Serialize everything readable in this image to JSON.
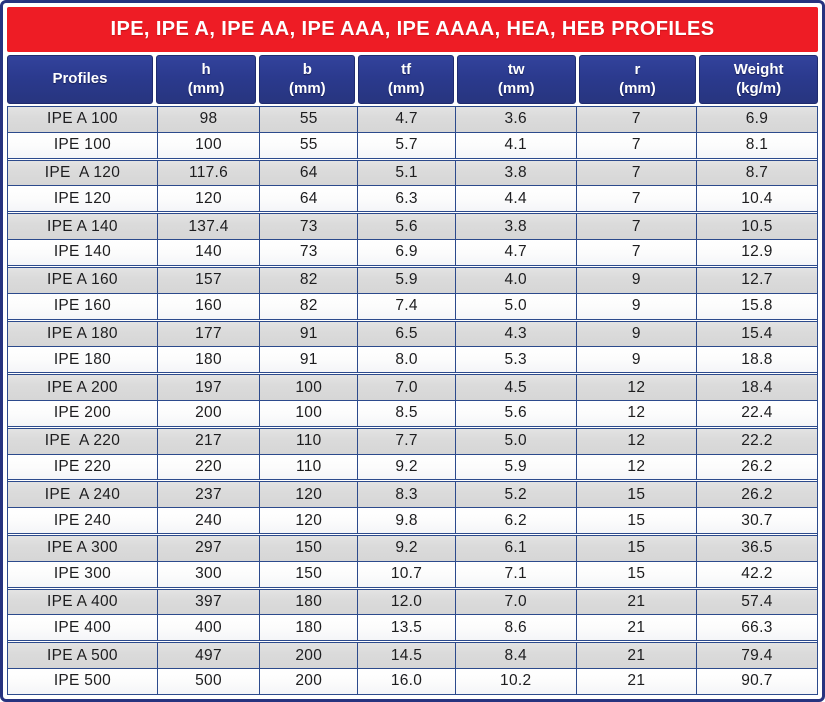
{
  "title": "IPE, IPE A, IPE AA, IPE AAA, IPE AAAA, HEA, HEB PROFILES",
  "columns": [
    {
      "name": "profiles",
      "label": "Profiles",
      "sub": ""
    },
    {
      "name": "h",
      "label": "h",
      "sub": "(mm)"
    },
    {
      "name": "b",
      "label": "b",
      "sub": "(mm)"
    },
    {
      "name": "tf",
      "label": "tf",
      "sub": "(mm)"
    },
    {
      "name": "tw",
      "label": "tw",
      "sub": "(mm)"
    },
    {
      "name": "r",
      "label": "r",
      "sub": "(mm)"
    },
    {
      "name": "weight",
      "label": "Weight",
      "sub": "(kg/m)"
    }
  ],
  "rows": [
    [
      "IPE A 100",
      "98",
      "55",
      "4.7",
      "3.6",
      "7",
      "6.9"
    ],
    [
      "IPE 100",
      "100",
      "55",
      "5.7",
      "4.1",
      "7",
      "8.1"
    ],
    [
      "IPE  A 120",
      "117.6",
      "64",
      "5.1",
      "3.8",
      "7",
      "8.7"
    ],
    [
      "IPE 120",
      "120",
      "64",
      "6.3",
      "4.4",
      "7",
      "10.4"
    ],
    [
      "IPE A 140",
      "137.4",
      "73",
      "5.6",
      "3.8",
      "7",
      "10.5"
    ],
    [
      "IPE 140",
      "140",
      "73",
      "6.9",
      "4.7",
      "7",
      "12.9"
    ],
    [
      "IPE A 160",
      "157",
      "82",
      "5.9",
      "4.0",
      "9",
      "12.7"
    ],
    [
      "IPE 160",
      "160",
      "82",
      "7.4",
      "5.0",
      "9",
      "15.8"
    ],
    [
      "IPE A 180",
      "177",
      "91",
      "6.5",
      "4.3",
      "9",
      "15.4"
    ],
    [
      "IPE 180",
      "180",
      "91",
      "8.0",
      "5.3",
      "9",
      "18.8"
    ],
    [
      "IPE A 200",
      "197",
      "100",
      "7.0",
      "4.5",
      "12",
      "18.4"
    ],
    [
      "IPE 200",
      "200",
      "100",
      "8.5",
      "5.6",
      "12",
      "22.4"
    ],
    [
      "IPE  A 220",
      "217",
      "110",
      "7.7",
      "5.0",
      "12",
      "22.2"
    ],
    [
      "IPE 220",
      "220",
      "110",
      "9.2",
      "5.9",
      "12",
      "26.2"
    ],
    [
      "IPE  A 240",
      "237",
      "120",
      "8.3",
      "5.2",
      "15",
      "26.2"
    ],
    [
      "IPE 240",
      "240",
      "120",
      "9.8",
      "6.2",
      "15",
      "30.7"
    ],
    [
      "IPE A 300",
      "297",
      "150",
      "9.2",
      "6.1",
      "15",
      "36.5"
    ],
    [
      "IPE 300",
      "300",
      "150",
      "10.7",
      "7.1",
      "15",
      "42.2"
    ],
    [
      "IPE A 400",
      "397",
      "180",
      "12.0",
      "7.0",
      "21",
      "57.4"
    ],
    [
      "IPE 400",
      "400",
      "180",
      "13.5",
      "8.6",
      "21",
      "66.3"
    ],
    [
      "IPE A 500",
      "497",
      "200",
      "14.5",
      "8.4",
      "21",
      "79.4"
    ],
    [
      "IPE 500",
      "500",
      "200",
      "16.0",
      "10.2",
      "21",
      "90.7"
    ]
  ],
  "colors": {
    "banner_red": "#ee1c25",
    "header_navy": "#2b3a8e",
    "grid_navy": "#2c4a8c",
    "row_gray": "#dbdbdb",
    "row_white": "#fcfcfc",
    "text_dark": "#1d1d1f"
  }
}
